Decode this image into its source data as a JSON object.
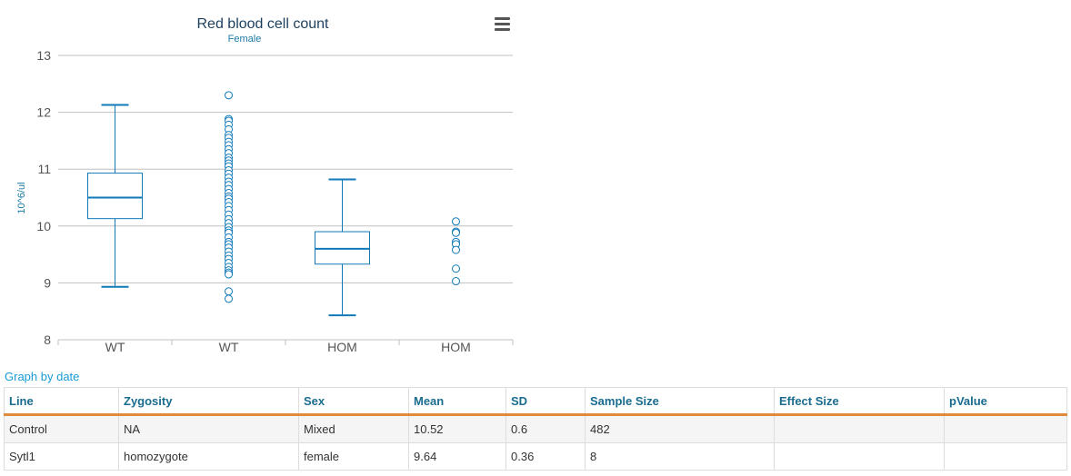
{
  "chart_data": {
    "type": "boxplot",
    "title": "Red blood cell count",
    "subtitle": "Female",
    "ylabel": "10^6/ul",
    "ylim": [
      8,
      13
    ],
    "yticks": [
      8,
      9,
      10,
      11,
      12,
      13
    ],
    "categories": [
      "WT",
      "WT",
      "HOM",
      "HOM"
    ],
    "boxes": [
      {
        "category_index": 0,
        "low": 8.93,
        "q1": 10.13,
        "median": 10.5,
        "q3": 10.93,
        "high": 12.13
      },
      {
        "category_index": 2,
        "low": 8.43,
        "q1": 9.33,
        "median": 9.6,
        "q3": 9.9,
        "high": 10.82
      }
    ],
    "scatter": [
      {
        "category_index": 1,
        "values": [
          12.3,
          11.88,
          11.85,
          11.78,
          11.7,
          11.6,
          11.55,
          11.48,
          11.42,
          11.35,
          11.28,
          11.2,
          11.15,
          11.1,
          11.05,
          10.98,
          10.92,
          10.85,
          10.78,
          10.72,
          10.65,
          10.58,
          10.52,
          10.48,
          10.42,
          10.35,
          10.28,
          10.2,
          10.12,
          10.05,
          9.98,
          9.92,
          9.88,
          9.8,
          9.72,
          9.68,
          9.62,
          9.55,
          9.48,
          9.42,
          9.35,
          9.28,
          9.22,
          9.18,
          9.15,
          8.85,
          8.72
        ]
      },
      {
        "category_index": 3,
        "values": [
          10.08,
          9.9,
          9.88,
          9.72,
          9.68,
          9.58,
          9.25,
          9.03
        ]
      }
    ],
    "colors": {
      "series": "#1179b8",
      "grid": "#c0c0c0",
      "title": "#1c3f5e",
      "subtitle": "#1c7aa6",
      "axis_text": "#555555"
    }
  },
  "menu_icon": "hamburger-menu-icon",
  "graph_link": "Graph by date",
  "table": {
    "headers": [
      "Line",
      "Zygosity",
      "Sex",
      "Mean",
      "SD",
      "Sample Size",
      "Effect Size",
      "pValue"
    ],
    "rows": [
      [
        "Control",
        "NA",
        "Mixed",
        "10.52",
        "0.6",
        "482",
        "",
        ""
      ],
      [
        "Sytl1",
        "homozygote",
        "female",
        "9.64",
        "0.36",
        "8",
        "",
        ""
      ]
    ]
  }
}
